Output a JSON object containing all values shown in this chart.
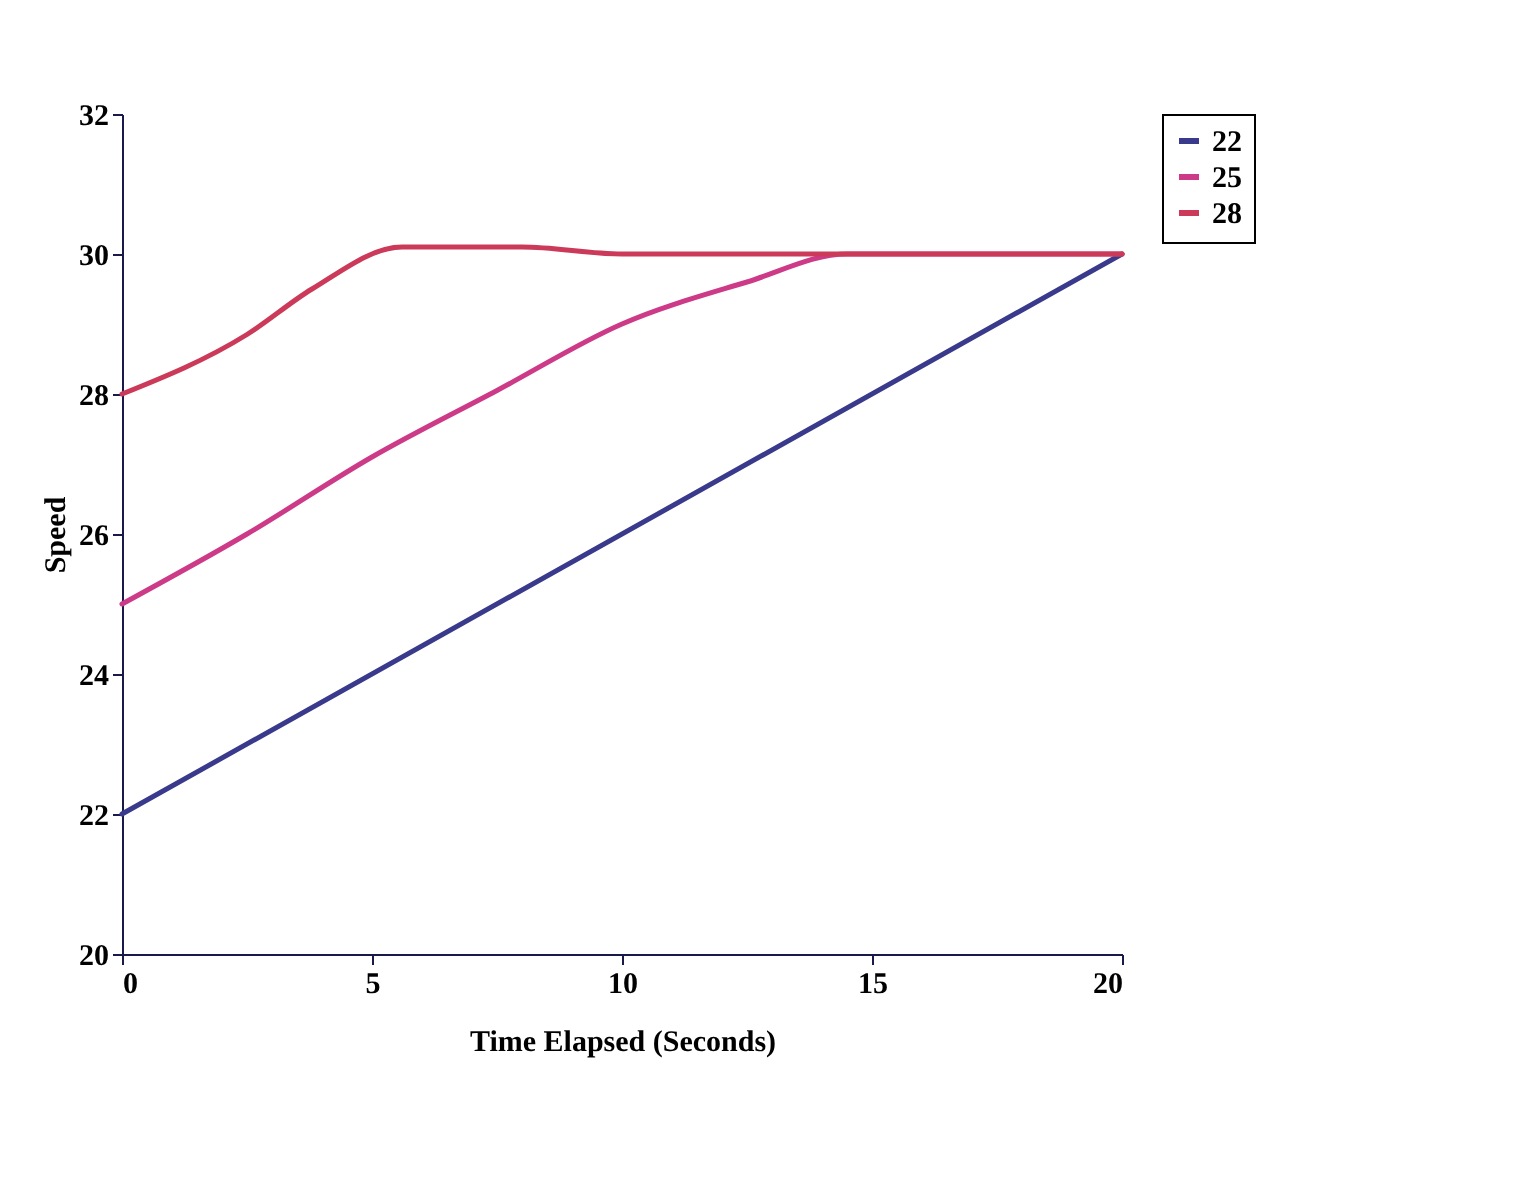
{
  "chart_data": {
    "type": "line",
    "xlabel": "Time Elapsed (Seconds)",
    "ylabel": "Speed",
    "xlim": [
      0,
      20
    ],
    "xticks": [
      0,
      5,
      10,
      15,
      20
    ],
    "ylim": [
      20,
      32
    ],
    "yticks": [
      20,
      22,
      24,
      26,
      28,
      30,
      32
    ],
    "legend": "right",
    "grid": false,
    "series": [
      {
        "name": "22",
        "color": "#3a3a8c",
        "x": [
          0,
          20
        ],
        "values": [
          22,
          30
        ]
      },
      {
        "name": "25",
        "color": "#cc3a88",
        "x": [
          0,
          2.5,
          5,
          7.5,
          10,
          12.5,
          14.5,
          20
        ],
        "values": [
          25,
          26,
          27.1,
          28.05,
          29,
          29.6,
          30,
          30
        ]
      },
      {
        "name": "28",
        "color": "#cc3a5a",
        "x": [
          0,
          2.5,
          3.8,
          5.6,
          8,
          10,
          16,
          20
        ],
        "values": [
          28,
          28.85,
          29.5,
          30.1,
          30.1,
          30,
          30,
          30
        ]
      }
    ]
  }
}
